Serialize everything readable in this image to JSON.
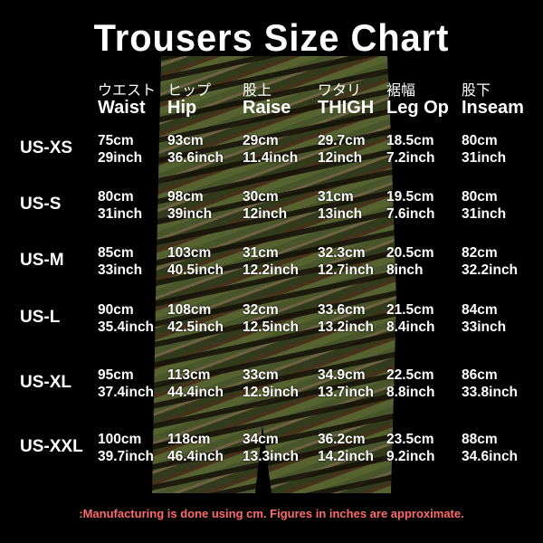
{
  "title": "Trousers Size Chart",
  "columns": [
    {
      "jp": "ウエスト",
      "en": "Waist"
    },
    {
      "jp": "ヒップ",
      "en": "Hip"
    },
    {
      "jp": "股上",
      "en": "Raise"
    },
    {
      "jp": "ワタリ",
      "en": "THIGH"
    },
    {
      "jp": "裾幅",
      "en": "Leg Op"
    },
    {
      "jp": "股下",
      "en": "Inseam"
    }
  ],
  "rows": [
    {
      "size": "US-XS",
      "cells": [
        [
          "75cm",
          "29inch"
        ],
        [
          "93cm",
          "36.6inch"
        ],
        [
          "29cm",
          "11.4inch"
        ],
        [
          "29.7cm",
          "12inch"
        ],
        [
          "18.5cm",
          "7.2inch"
        ],
        [
          "80cm",
          "31inch"
        ]
      ]
    },
    {
      "size": "US-S",
      "cells": [
        [
          "80cm",
          "31inch"
        ],
        [
          "98cm",
          "39inch"
        ],
        [
          "30cm",
          "12inch"
        ],
        [
          "31cm",
          "13inch"
        ],
        [
          "19.5cm",
          "7.6inch"
        ],
        [
          "80cm",
          "31inch"
        ]
      ]
    },
    {
      "size": "US-M",
      "cells": [
        [
          "85cm",
          "33inch"
        ],
        [
          "103cm",
          "40.5inch"
        ],
        [
          "31cm",
          "12.2inch"
        ],
        [
          "32.3cm",
          "12.7inch"
        ],
        [
          "20.5cm",
          "8inch"
        ],
        [
          "82cm",
          "32.2inch"
        ]
      ]
    },
    {
      "size": "US-L",
      "cells": [
        [
          "90cm",
          "35.4inch"
        ],
        [
          "108cm",
          "42.5inch"
        ],
        [
          "32cm",
          "12.5inch"
        ],
        [
          "33.6cm",
          "13.2inch"
        ],
        [
          "21.5cm",
          "8.4inch"
        ],
        [
          "84cm",
          "33inch"
        ]
      ]
    },
    {
      "size": "US-XL",
      "cells": [
        [
          "95cm",
          "37.4inch"
        ],
        [
          "113cm",
          "44.4inch"
        ],
        [
          "33cm",
          "12.9inch"
        ],
        [
          "34.9cm",
          "13.7inch"
        ],
        [
          "22.5cm",
          "8.8inch"
        ],
        [
          "86cm",
          "33.8inch"
        ]
      ]
    },
    {
      "size": "US-XXL",
      "cells": [
        [
          "100cm",
          "39.7inch"
        ],
        [
          "118cm",
          "46.4inch"
        ],
        [
          "34cm",
          "13.3inch"
        ],
        [
          "36.2cm",
          "14.2inch"
        ],
        [
          "23.5cm",
          "9.2inch"
        ],
        [
          "88cm",
          "34.6inch"
        ]
      ]
    }
  ],
  "note": ":Manufacturing is done using cm. Figures in inches are approximate.",
  "colors": {
    "background": "#000000",
    "text": "#ffffff",
    "note": "#ff6b6b"
  }
}
